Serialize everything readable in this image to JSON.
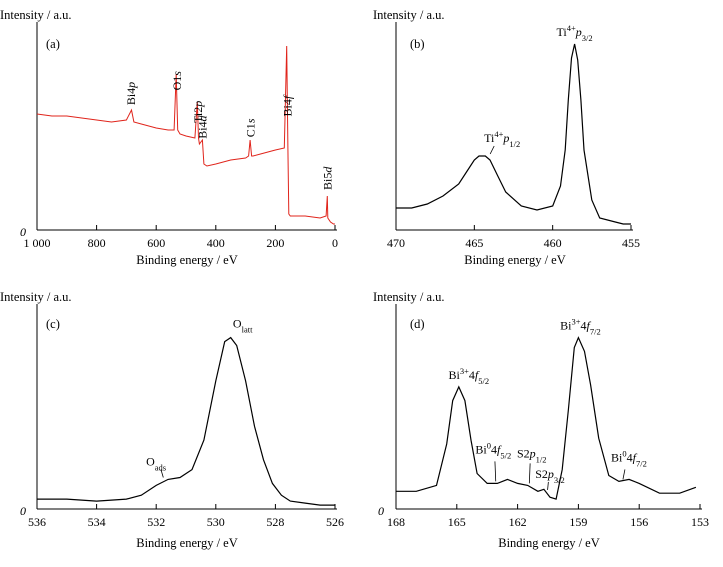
{
  "chart_data": [
    {
      "type": "line",
      "panel": "(a)",
      "ylabel": "Intensity / a.u.",
      "xlabel": "Binding energy / eV",
      "xlim": [
        1000,
        0
      ],
      "x_reversed": true,
      "xticks": [
        1000,
        800,
        600,
        400,
        200,
        0
      ],
      "xtick_labels": [
        "1 000",
        "800",
        "600",
        "400",
        "200",
        "0"
      ],
      "y_origin_label": "0",
      "line_color": "#e0241b",
      "series": [
        {
          "x": [
            1000,
            950,
            900,
            850,
            800,
            750,
            700,
            683,
            675,
            650,
            600,
            560,
            540,
            533,
            528,
            520,
            500,
            470,
            462,
            458,
            455,
            445,
            440,
            430,
            400,
            350,
            300,
            290,
            285,
            280,
            275,
            250,
            200,
            170,
            162,
            158,
            155,
            150,
            100,
            50,
            30,
            26,
            24,
            15,
            5,
            0
          ],
          "y": [
            0.58,
            0.57,
            0.57,
            0.56,
            0.55,
            0.54,
            0.55,
            0.6,
            0.54,
            0.53,
            0.51,
            0.5,
            0.5,
            0.78,
            0.5,
            0.48,
            0.47,
            0.46,
            0.64,
            0.46,
            0.43,
            0.45,
            0.33,
            0.32,
            0.33,
            0.35,
            0.36,
            0.37,
            0.45,
            0.37,
            0.37,
            0.38,
            0.4,
            0.41,
            0.92,
            0.41,
            0.08,
            0.07,
            0.07,
            0.06,
            0.07,
            0.17,
            0.06,
            0.04,
            0.03,
            0.03
          ]
        }
      ],
      "annotations": [
        {
          "x": 685,
          "pre": "Bi4",
          "ital": "p",
          "sub": "",
          "sup": ""
        },
        {
          "x": 531,
          "pre": "O1",
          "ital": "s",
          "sub": "",
          "sup": ""
        },
        {
          "x": 459,
          "pre": "Ti2",
          "ital": "p",
          "sub": "",
          "sup": ""
        },
        {
          "x": 444,
          "pre": "Bi4",
          "ital": "d",
          "sub": "",
          "sup": ""
        },
        {
          "x": 284,
          "pre": "C1",
          "ital": "s",
          "sub": "",
          "sup": ""
        },
        {
          "x": 159,
          "pre": "Bi4",
          "ital": "f",
          "sub": "",
          "sup": ""
        },
        {
          "x": 26,
          "pre": "Bi5",
          "ital": "d",
          "sub": "",
          "sup": ""
        }
      ]
    },
    {
      "type": "line",
      "panel": "(b)",
      "ylabel": "Intensity / a.u.",
      "xlabel": "Binding energy / eV",
      "xlim": [
        470,
        455
      ],
      "x_reversed": true,
      "xticks": [
        470,
        465,
        460,
        455
      ],
      "xtick_labels": [
        "470",
        "465",
        "460",
        "455"
      ],
      "line_color": "#000000",
      "series": [
        {
          "x": [
            470,
            469,
            468,
            467,
            466,
            465.5,
            465,
            464.7,
            464.3,
            464,
            463.5,
            463,
            462,
            461,
            460,
            459.5,
            459.2,
            459,
            458.8,
            458.6,
            458.4,
            458.2,
            458,
            457.5,
            457,
            456,
            455.5,
            455
          ],
          "y": [
            0.11,
            0.11,
            0.13,
            0.17,
            0.23,
            0.29,
            0.35,
            0.37,
            0.37,
            0.35,
            0.27,
            0.19,
            0.12,
            0.1,
            0.12,
            0.22,
            0.4,
            0.65,
            0.86,
            0.93,
            0.85,
            0.65,
            0.4,
            0.15,
            0.06,
            0.04,
            0.03,
            0.03
          ]
        }
      ],
      "annotations": [
        {
          "x": 464.5,
          "pre": "Ti",
          "ital": "p",
          "sub": "1/2",
          "sup": "4+"
        },
        {
          "x": 458.6,
          "pre": "Ti",
          "ital": "p",
          "sub": "3/2",
          "sup": "4+"
        }
      ]
    },
    {
      "type": "line",
      "panel": "(c)",
      "ylabel": "Intensity / a.u.",
      "xlabel": "Binding energy / eV",
      "xlim": [
        536,
        526
      ],
      "x_reversed": true,
      "xticks": [
        536,
        534,
        532,
        530,
        528,
        526
      ],
      "xtick_labels": [
        "536",
        "534",
        "532",
        "530",
        "528",
        "526"
      ],
      "y_origin_label": "0",
      "line_color": "#000000",
      "series": [
        {
          "x": [
            536,
            535,
            534,
            533,
            532.5,
            532,
            531.6,
            531.2,
            530.8,
            530.4,
            530,
            529.7,
            529.5,
            529.3,
            529,
            528.7,
            528.4,
            528.1,
            527.8,
            527.5,
            527,
            526.5,
            526
          ],
          "y": [
            0.05,
            0.05,
            0.04,
            0.05,
            0.07,
            0.12,
            0.15,
            0.16,
            0.2,
            0.35,
            0.65,
            0.85,
            0.87,
            0.83,
            0.65,
            0.42,
            0.25,
            0.13,
            0.07,
            0.04,
            0.03,
            0.02,
            0.02
          ]
        }
      ],
      "annotations": [
        {
          "x": 531.6,
          "pre": "O",
          "ital": "",
          "sub": "ads",
          "sup": ""
        },
        {
          "x": 529.5,
          "pre": "O",
          "ital": "",
          "sub": "latt",
          "sup": ""
        }
      ]
    },
    {
      "type": "line",
      "panel": "(d)",
      "ylabel": "Intensity / a.u.",
      "xlabel": "Binding energy / eV",
      "xlim": [
        168,
        153
      ],
      "x_reversed": true,
      "xticks": [
        168,
        165,
        162,
        159,
        156,
        153
      ],
      "xtick_labels": [
        "168",
        "165",
        "162",
        "159",
        "156",
        "153"
      ],
      "y_origin_label": "0",
      "line_color": "#000000",
      "series": [
        {
          "x": [
            168,
            167,
            166,
            165.5,
            165.2,
            164.9,
            164.6,
            164.3,
            164,
            163.5,
            163,
            162.5,
            162,
            161.5,
            161,
            160.7,
            160.4,
            160.1,
            159.8,
            159.5,
            159.2,
            159,
            158.7,
            158.4,
            158,
            157.5,
            157,
            156.5,
            156,
            155,
            154,
            153.2
          ],
          "y": [
            0.09,
            0.09,
            0.12,
            0.33,
            0.55,
            0.62,
            0.55,
            0.35,
            0.18,
            0.13,
            0.13,
            0.15,
            0.13,
            0.12,
            0.09,
            0.1,
            0.06,
            0.05,
            0.2,
            0.5,
            0.82,
            0.87,
            0.8,
            0.63,
            0.36,
            0.17,
            0.14,
            0.15,
            0.13,
            0.08,
            0.08,
            0.11
          ]
        }
      ],
      "annotations": [
        {
          "x": 164.9,
          "pre": "Bi",
          "ital": "f",
          "sub": "5/2",
          "sup": "3+",
          "mid": "4"
        },
        {
          "x": 163.0,
          "pre": "Bi",
          "ital": "f",
          "sub": "5/2",
          "sup": "0",
          "mid": "4"
        },
        {
          "x": 161.5,
          "pre": "S2",
          "ital": "p",
          "sub": "1/2",
          "sup": ""
        },
        {
          "x": 160.6,
          "pre": "S2",
          "ital": "p",
          "sub": "3/2",
          "sup": ""
        },
        {
          "x": 159.0,
          "pre": "Bi",
          "ital": "f",
          "sub": "7/2",
          "sup": "3+",
          "mid": "4"
        },
        {
          "x": 157.0,
          "pre": "Bi",
          "ital": "f",
          "sub": "7/2",
          "sup": "0",
          "mid": "4"
        }
      ]
    }
  ]
}
